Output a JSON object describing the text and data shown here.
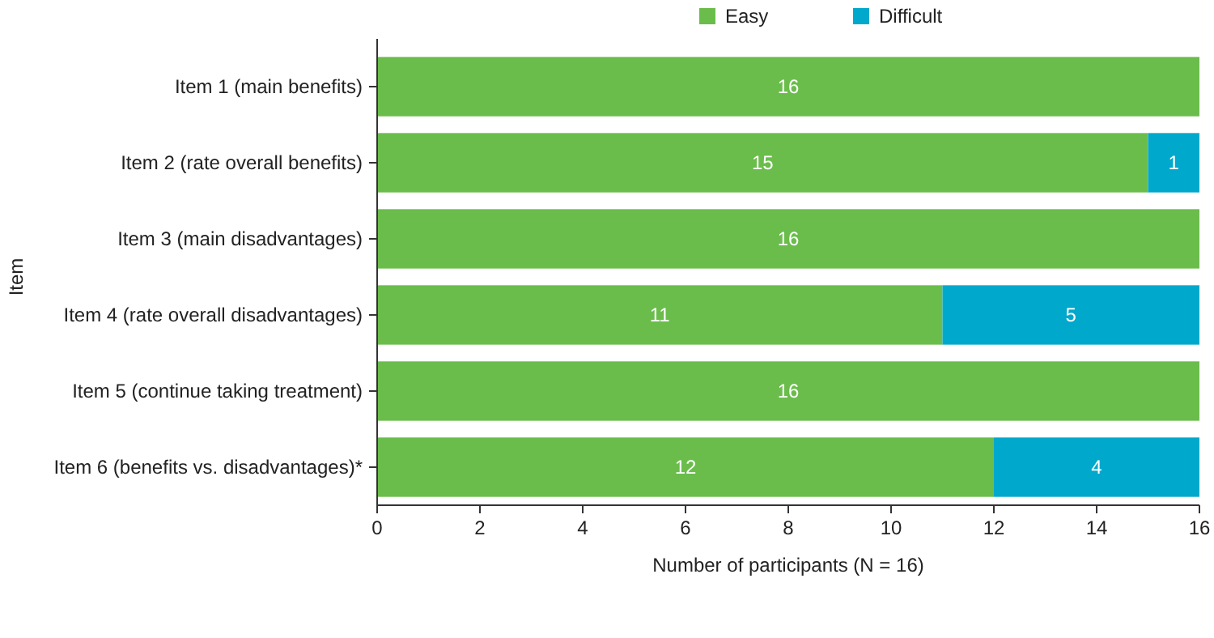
{
  "chart_data": {
    "type": "bar",
    "orientation": "horizontal",
    "stacked": true,
    "xlabel": "Number of participants (N = 16)",
    "ylabel": "Item",
    "categories": [
      "Item 1 (main benefits)",
      "Item 2 (rate overall benefits)",
      "Item 3 (main disadvantages)",
      "Item 4 (rate overall disadvantages)",
      "Item 5 (continue taking treatment)",
      "Item 6 (benefits vs. disadvantages)*"
    ],
    "series": [
      {
        "name": "Easy",
        "color": "#6abd4b",
        "values": [
          16,
          15,
          16,
          11,
          16,
          12
        ]
      },
      {
        "name": "Difficult",
        "color": "#00a8cc",
        "values": [
          null,
          1,
          null,
          5,
          null,
          4
        ]
      }
    ],
    "xlim": [
      0,
      16
    ],
    "xticks": [
      0,
      2,
      4,
      6,
      8,
      10,
      12,
      14,
      16
    ],
    "data_labels": true,
    "legend": "top",
    "grid": false
  }
}
